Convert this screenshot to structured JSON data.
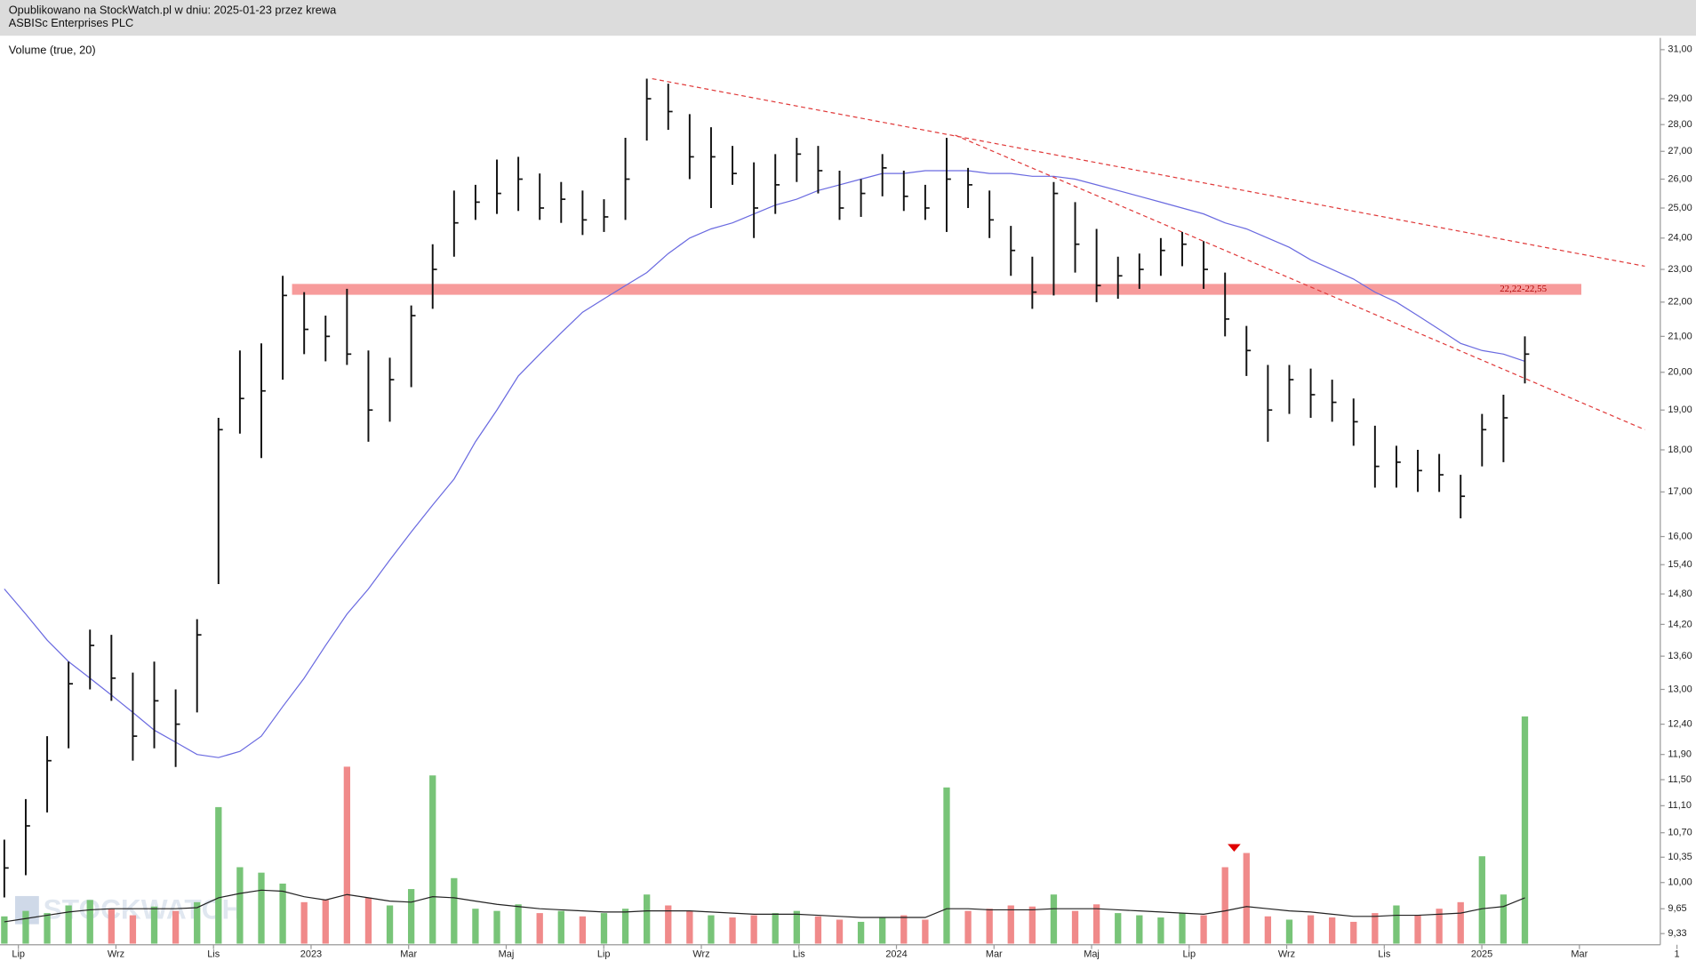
{
  "chart_data": {
    "type": "candlestick",
    "subtitle": "Opublikowano na StockWatch.pl w dniu: 2025-01-23 przez krewa",
    "title": "ASBISc Enterprises PLC",
    "volume_label": "Volume (true, 20)",
    "watermark": "STOCKWATCH",
    "log_scale": true,
    "ylim": [
      9.23,
      31.5
    ],
    "yticks": [
      {
        "value": 31,
        "label": "31,00"
      },
      {
        "value": 29,
        "label": "29,00"
      },
      {
        "value": 28,
        "label": "28,00"
      },
      {
        "value": 27,
        "label": "27,00"
      },
      {
        "value": 26,
        "label": "26,00"
      },
      {
        "value": 25,
        "label": "25,00"
      },
      {
        "value": 24,
        "label": "24,00"
      },
      {
        "value": 23,
        "label": "23,00"
      },
      {
        "value": 22,
        "label": "22,00"
      },
      {
        "value": 21,
        "label": "21,00"
      },
      {
        "value": 20,
        "label": "20,00"
      },
      {
        "value": 19,
        "label": "19,00"
      },
      {
        "value": 18,
        "label": "18,00"
      },
      {
        "value": 17,
        "label": "17,00"
      },
      {
        "value": 16,
        "label": "16,00"
      },
      {
        "value": 15.4,
        "label": "15,40"
      },
      {
        "value": 14.8,
        "label": "14,80"
      },
      {
        "value": 14.2,
        "label": "14,20"
      },
      {
        "value": 13.6,
        "label": "13,60"
      },
      {
        "value": 13,
        "label": "13,00"
      },
      {
        "value": 12.4,
        "label": "12,40"
      },
      {
        "value": 11.9,
        "label": "11,90"
      },
      {
        "value": 11.5,
        "label": "11,50"
      },
      {
        "value": 11.1,
        "label": "11,10"
      },
      {
        "value": 10.7,
        "label": "10,70"
      },
      {
        "value": 10.35,
        "label": "10,35"
      },
      {
        "value": 10,
        "label": "10,00"
      },
      {
        "value": 9.65,
        "label": "9,65"
      },
      {
        "value": 9.33,
        "label": "9,33"
      }
    ],
    "xticks": [
      "Lip",
      "Wrz",
      "Lis",
      "2023",
      "Mar",
      "Maj",
      "Lip",
      "Wrz",
      "Lis",
      "2024",
      "Mar",
      "Maj",
      "Lip",
      "Wrz",
      "Lis",
      "2025",
      "Mar",
      "1"
    ],
    "candle_color": "#111111",
    "high": [
      10.6,
      11.2,
      12.2,
      13.5,
      14.1,
      14.0,
      13.3,
      13.5,
      13.0,
      14.3,
      18.8,
      20.6,
      20.8,
      22.8,
      22.3,
      21.6,
      22.4,
      20.6,
      20.4,
      21.9,
      23.8,
      25.6,
      25.8,
      26.7,
      26.8,
      26.2,
      25.9,
      25.6,
      25.3,
      27.5,
      29.8,
      29.6,
      28.4,
      27.9,
      27.2,
      26.6,
      26.9,
      27.5,
      27.2,
      26.3,
      26.0,
      26.9,
      26.3,
      25.8,
      27.5,
      26.4,
      25.6,
      24.4,
      23.4,
      25.9,
      25.2,
      24.3,
      23.4,
      23.5,
      24.0,
      24.2,
      23.9,
      22.9,
      21.3,
      20.2,
      20.2,
      20.1,
      19.8,
      19.3,
      18.6,
      18.1,
      18.0,
      17.9,
      17.4,
      18.9,
      19.4,
      21.0
    ],
    "low": [
      9.8,
      10.1,
      11.0,
      12.0,
      13.0,
      12.8,
      11.8,
      12.0,
      11.7,
      12.6,
      15.0,
      18.4,
      17.8,
      19.8,
      20.5,
      20.3,
      20.2,
      18.2,
      18.7,
      19.6,
      21.8,
      23.4,
      24.6,
      24.8,
      24.9,
      24.6,
      24.5,
      24.1,
      24.2,
      24.6,
      27.4,
      27.8,
      26.0,
      25.0,
      25.8,
      24.0,
      24.8,
      25.9,
      25.5,
      24.6,
      24.7,
      25.4,
      24.9,
      24.6,
      24.2,
      25.0,
      24.0,
      22.8,
      21.8,
      22.2,
      22.9,
      22.0,
      22.1,
      22.4,
      22.8,
      23.1,
      22.4,
      21.0,
      19.9,
      18.2,
      18.9,
      18.8,
      18.7,
      18.1,
      17.1,
      17.1,
      17.0,
      17.0,
      16.4,
      17.6,
      17.7,
      19.7
    ],
    "close": [
      10.2,
      10.8,
      11.8,
      13.1,
      13.8,
      13.2,
      12.2,
      12.8,
      12.4,
      14.0,
      18.5,
      19.3,
      19.5,
      22.2,
      21.2,
      21.0,
      20.5,
      19.0,
      19.8,
      21.6,
      23.0,
      24.5,
      25.2,
      25.5,
      26.0,
      25.0,
      25.3,
      24.6,
      24.7,
      26.0,
      29.0,
      28.5,
      26.8,
      26.8,
      26.2,
      25.0,
      25.8,
      26.9,
      26.3,
      25.0,
      25.5,
      26.4,
      25.4,
      25.0,
      26.0,
      25.8,
      24.6,
      23.6,
      22.3,
      25.5,
      23.8,
      22.5,
      22.8,
      23.0,
      23.6,
      23.8,
      23.0,
      21.5,
      20.6,
      19.0,
      19.8,
      19.4,
      19.2,
      18.7,
      17.6,
      17.7,
      17.5,
      17.4,
      16.9,
      18.5,
      18.8,
      20.5
    ],
    "ma": {
      "color": "#6a6ae0",
      "values": [
        14.9,
        14.4,
        13.9,
        13.5,
        13.2,
        12.9,
        12.6,
        12.3,
        12.1,
        11.9,
        11.85,
        11.95,
        12.2,
        12.7,
        13.2,
        13.8,
        14.4,
        14.9,
        15.5,
        16.1,
        16.7,
        17.3,
        18.2,
        19.0,
        19.9,
        20.5,
        21.1,
        21.7,
        22.1,
        22.5,
        22.9,
        23.5,
        24.0,
        24.3,
        24.5,
        24.8,
        25.1,
        25.3,
        25.6,
        25.8,
        26.0,
        26.2,
        26.2,
        26.3,
        26.3,
        26.3,
        26.2,
        26.2,
        26.1,
        26.1,
        26.0,
        25.8,
        25.6,
        25.4,
        25.2,
        25.0,
        24.8,
        24.5,
        24.3,
        24.0,
        23.7,
        23.3,
        23.0,
        22.7,
        22.3,
        22.0,
        21.6,
        21.2,
        20.8,
        20.6,
        20.5,
        20.3
      ]
    },
    "volume": {
      "up_color": "#78c478",
      "down_color": "#f08a8a",
      "values": [
        2.5,
        3.0,
        2.8,
        3.5,
        4.0,
        3.2,
        2.6,
        3.4,
        3.0,
        3.8,
        12.5,
        7.0,
        6.5,
        5.5,
        3.8,
        4.0,
        16.2,
        4.2,
        3.5,
        5.0,
        15.4,
        6.0,
        3.2,
        3.0,
        3.6,
        2.8,
        3.0,
        2.5,
        2.8,
        3.2,
        4.5,
        3.5,
        3.0,
        2.6,
        2.4,
        2.6,
        2.8,
        3.0,
        2.5,
        2.2,
        2.0,
        2.4,
        2.6,
        2.2,
        14.3,
        3.0,
        3.2,
        3.5,
        3.4,
        4.5,
        3.0,
        3.6,
        2.8,
        2.6,
        2.4,
        2.8,
        2.6,
        7.0,
        8.3,
        2.5,
        2.2,
        2.6,
        2.4,
        2.0,
        2.8,
        3.5,
        2.6,
        3.2,
        3.8,
        8.0,
        4.5,
        20.8
      ]
    },
    "volume_ma": {
      "color": "#222222",
      "values": [
        2.0,
        2.3,
        2.6,
        2.9,
        3.1,
        3.2,
        3.2,
        3.2,
        3.2,
        3.3,
        4.2,
        4.6,
        4.9,
        4.8,
        4.3,
        4.0,
        4.5,
        4.2,
        3.9,
        3.8,
        4.3,
        4.2,
        3.9,
        3.6,
        3.4,
        3.2,
        3.1,
        3.0,
        2.9,
        2.9,
        3.0,
        3.0,
        3.0,
        2.9,
        2.8,
        2.7,
        2.7,
        2.7,
        2.6,
        2.5,
        2.4,
        2.4,
        2.4,
        2.4,
        3.2,
        3.2,
        3.1,
        3.1,
        3.1,
        3.2,
        3.2,
        3.2,
        3.1,
        3.0,
        2.9,
        2.8,
        2.7,
        3.0,
        3.4,
        3.2,
        3.0,
        2.9,
        2.7,
        2.5,
        2.5,
        2.6,
        2.6,
        2.7,
        2.8,
        3.2,
        3.4,
        4.2
      ]
    },
    "band": {
      "label": "22,22-22,55",
      "low": 22.22,
      "high": 22.55,
      "color": "#f47a7a"
    },
    "trendlines": {
      "color": "#e03a3a",
      "lines": [
        {
          "from": [
            30.25,
            29.8
          ],
          "to": [
            76.6,
            23.1
          ]
        },
        {
          "from": [
            44.4,
            27.6
          ],
          "to": [
            76.6,
            18.5
          ]
        }
      ]
    }
  }
}
